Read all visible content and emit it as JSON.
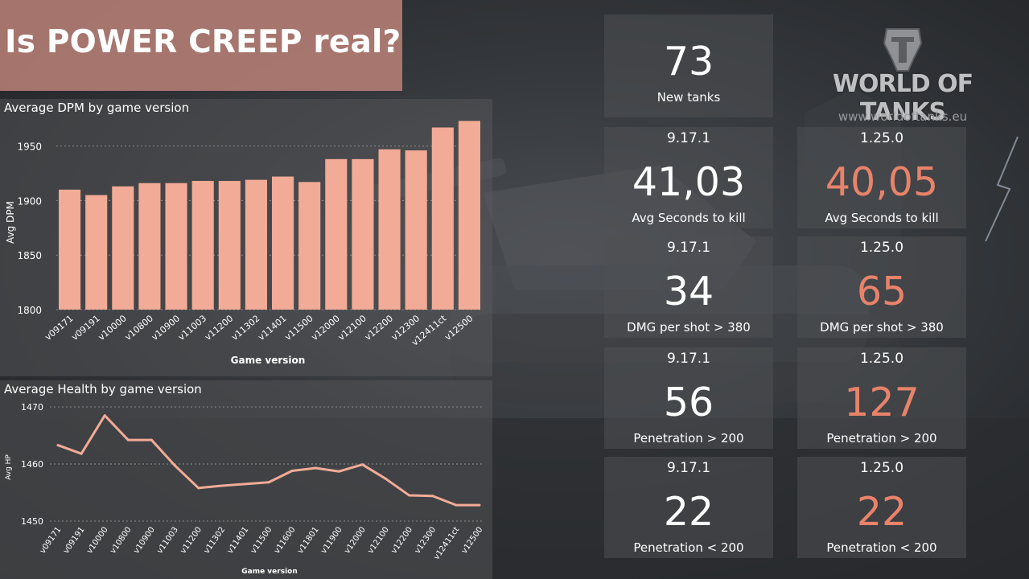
{
  "title": "Is POWER CREEP real?",
  "colors": {
    "accent": "#e8836a",
    "bar": "#f2ab96",
    "line": "#f2ab96",
    "title_bg": "#b78076"
  },
  "logo": {
    "brand": "WORLD OF TANKS",
    "url": "www.worldoftanks.eu",
    "icon": "tank-helmet-logo-icon"
  },
  "summary": {
    "new_tanks_value": "73",
    "new_tanks_label": "New tanks"
  },
  "stats": [
    {
      "left_version": "9.17.1",
      "left_value": "41,03",
      "right_version": "1.25.0",
      "right_value": "40,05",
      "label": "Avg Seconds to kill"
    },
    {
      "left_version": "9.17.1",
      "left_value": "34",
      "right_version": "1.25.0",
      "right_value": "65",
      "label": "DMG per shot > 380"
    },
    {
      "left_version": "9.17.1",
      "left_value": "56",
      "right_version": "1.25.0",
      "right_value": "127",
      "label": "Penetration > 200"
    },
    {
      "left_version": "9.17.1",
      "left_value": "22",
      "right_version": "1.25.0",
      "right_value": "22",
      "label": "Penetration < 200"
    }
  ],
  "chart_data": [
    {
      "type": "bar",
      "title": "Average DPM by game version",
      "xlabel": "Game version",
      "ylabel": "Avg DPM",
      "ylim": [
        1800,
        1960
      ],
      "yticks": [
        1800,
        1850,
        1900,
        1950
      ],
      "categories": [
        "v09171",
        "v09191",
        "v10000",
        "v10800",
        "v10900",
        "v11003",
        "v11200",
        "v11302",
        "v11401",
        "v11500",
        "v12000",
        "v12100",
        "v12200",
        "v12300",
        "v12411ct",
        "v12500"
      ],
      "values": [
        1910,
        1905,
        1913,
        1916,
        1916,
        1918,
        1918,
        1919,
        1922,
        1917,
        1938,
        1938,
        1947,
        1946,
        1967,
        1973
      ],
      "grid": true
    },
    {
      "type": "line",
      "title": "Average Health by game version",
      "xlabel": "Game version",
      "ylabel": "Avg HP",
      "ylim": [
        1450,
        1470
      ],
      "yticks": [
        1450,
        1460,
        1470
      ],
      "categories": [
        "v09171",
        "v09191",
        "v10000",
        "v10800",
        "v10900",
        "v11003",
        "v11200",
        "v11302",
        "v11401",
        "v11500",
        "v11600",
        "v11801",
        "v11900",
        "v12000",
        "v12100",
        "v12200",
        "v12300",
        "v12411ct",
        "v12500"
      ],
      "values": [
        1463.3,
        1461.8,
        1468.5,
        1464.2,
        1464.2,
        1459.7,
        1455.8,
        1456.2,
        1456.5,
        1456.8,
        1458.8,
        1459.3,
        1458.7,
        1459.9,
        1457.4,
        1454.5,
        1454.4,
        1452.8,
        1452.8
      ],
      "grid": true
    }
  ]
}
